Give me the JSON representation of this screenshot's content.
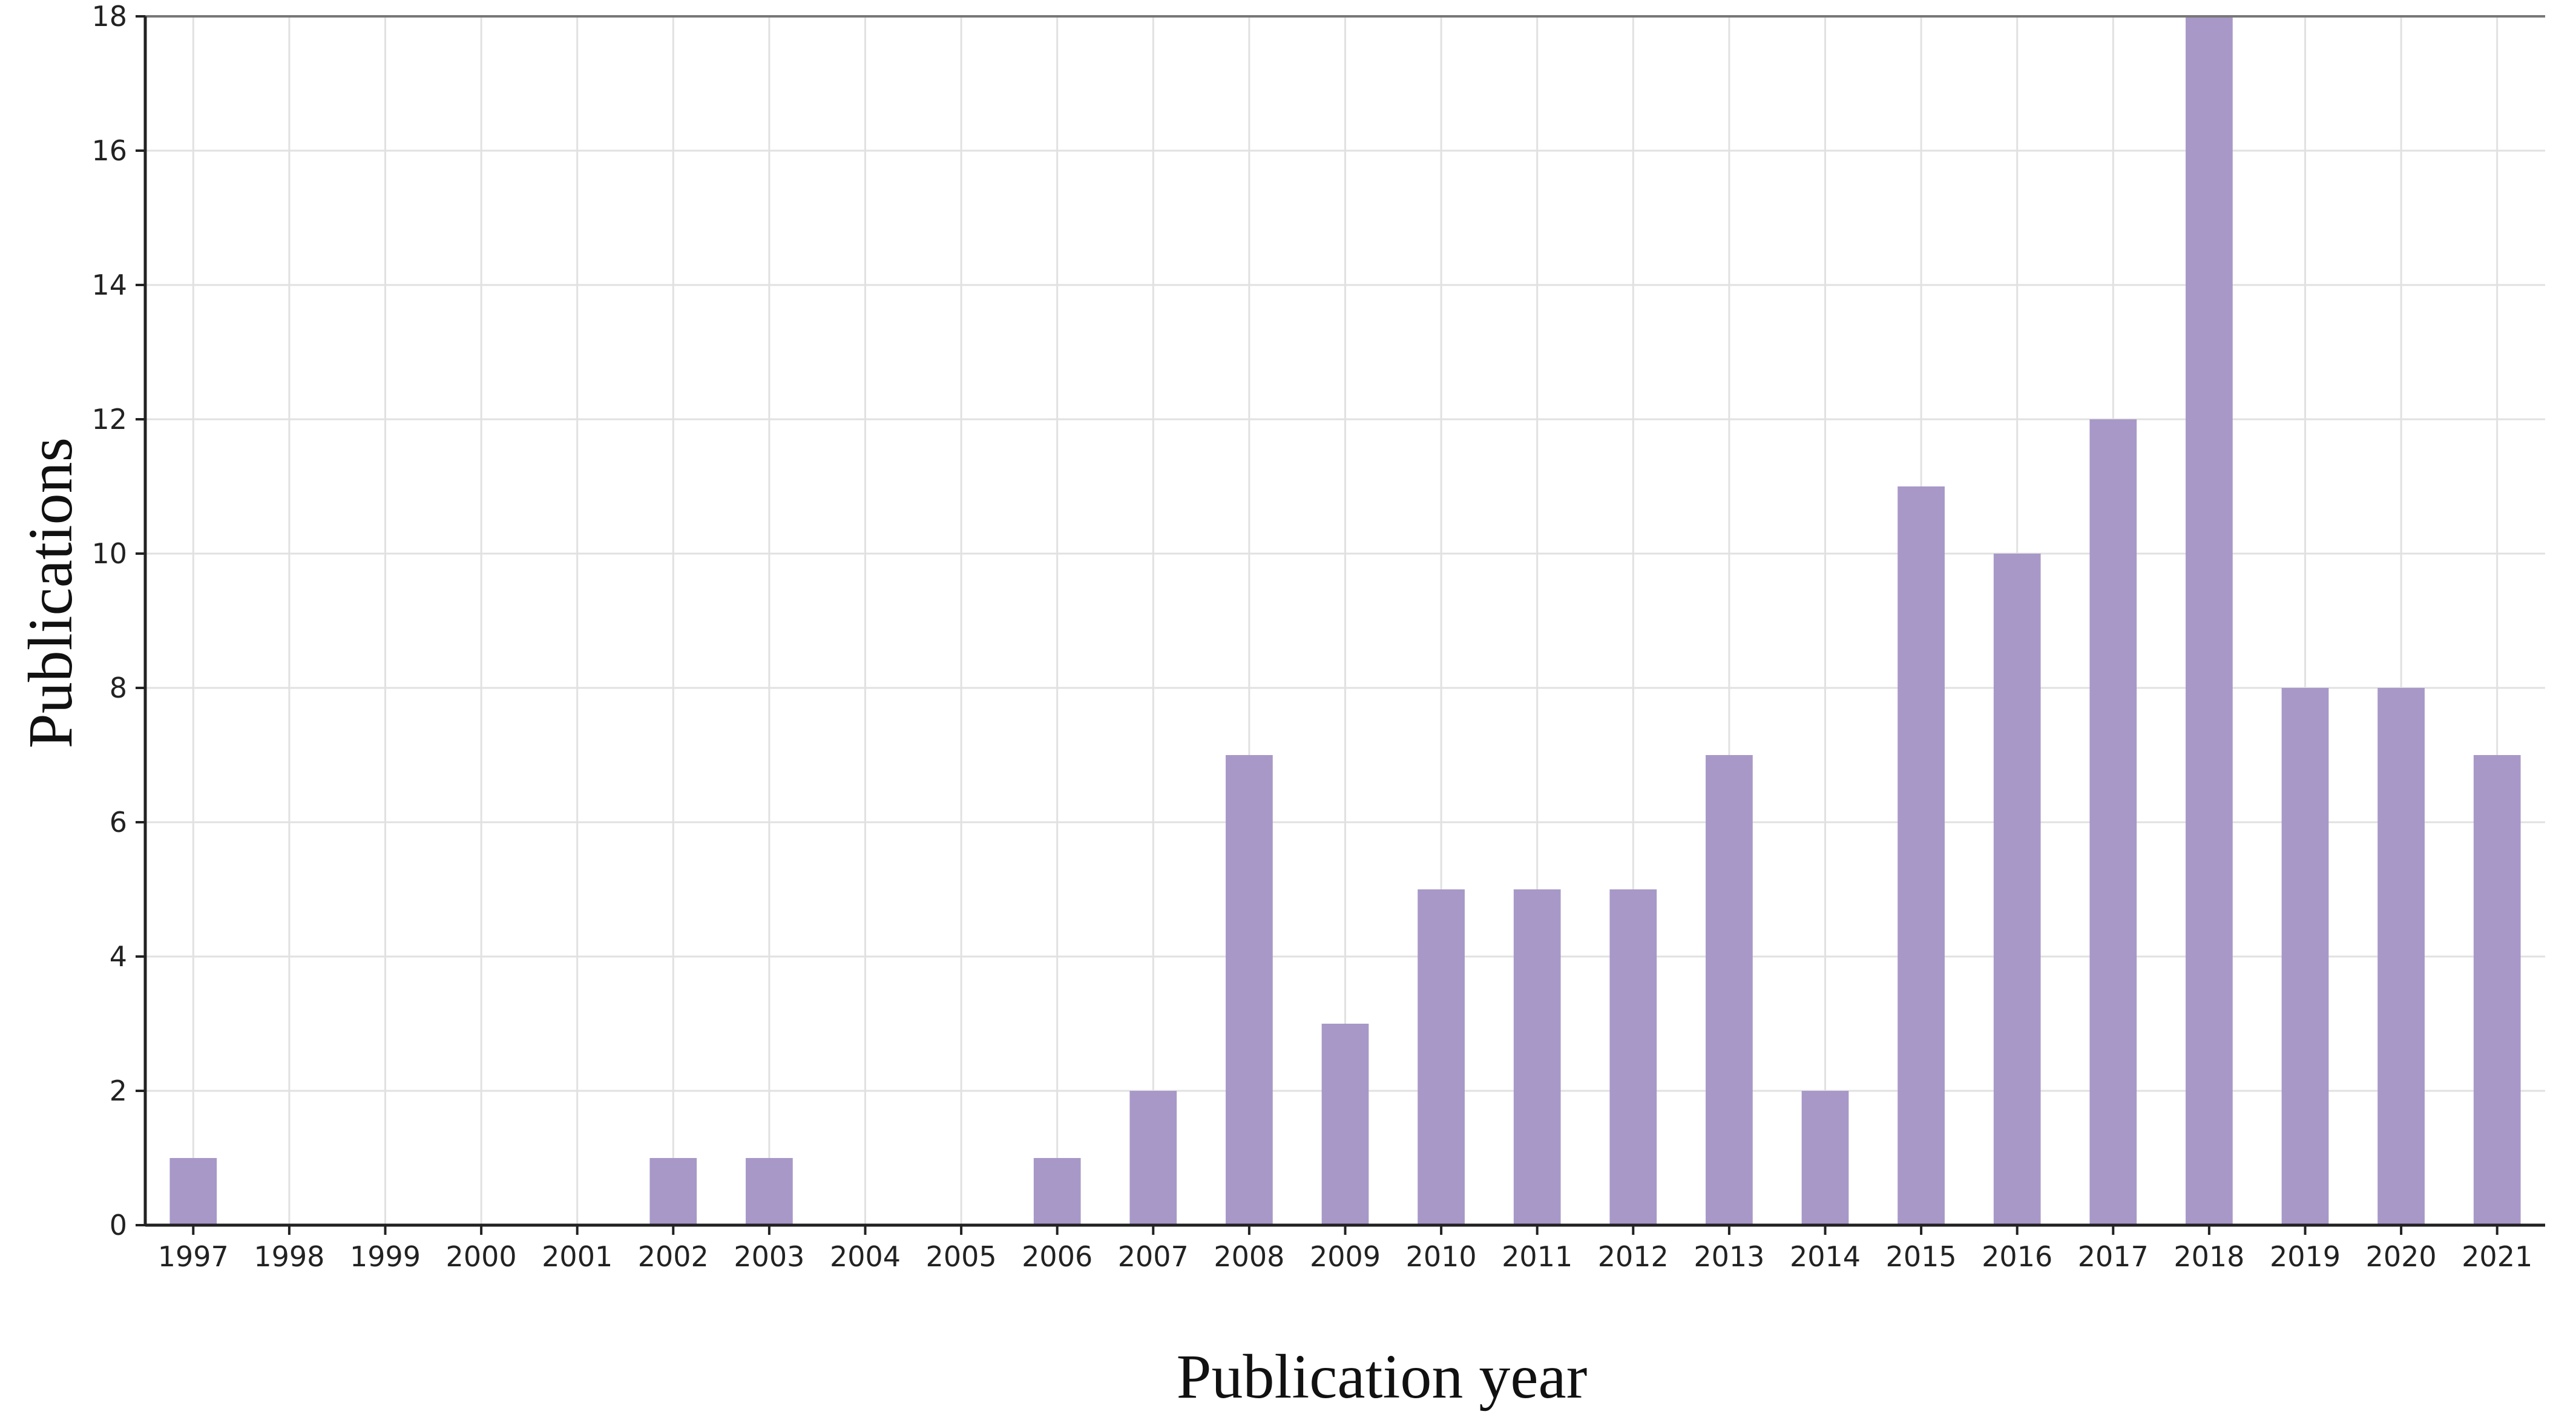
{
  "chart_data": {
    "type": "bar",
    "title": "",
    "xlabel": "Publication year",
    "ylabel": "Publications",
    "categories": [
      "1997",
      "1998",
      "1999",
      "2000",
      "2001",
      "2002",
      "2003",
      "2004",
      "2005",
      "2006",
      "2007",
      "2008",
      "2009",
      "2010",
      "2011",
      "2012",
      "2013",
      "2014",
      "2015",
      "2016",
      "2017",
      "2018",
      "2019",
      "2020",
      "2021"
    ],
    "values": [
      1,
      0,
      0,
      0,
      0,
      1,
      1,
      0,
      0,
      1,
      2,
      7,
      3,
      5,
      5,
      5,
      7,
      2,
      11,
      10,
      12,
      18,
      8,
      8,
      7
    ],
    "ylim": [
      0,
      18
    ],
    "yticks": [
      "0",
      "2",
      "4",
      "6",
      "8",
      "10",
      "12",
      "14",
      "16",
      "18"
    ],
    "grid": true,
    "legend": "none",
    "colors": {
      "bar": "#a898c8",
      "grid": "#e1e1e1",
      "axis": "#222222"
    }
  }
}
